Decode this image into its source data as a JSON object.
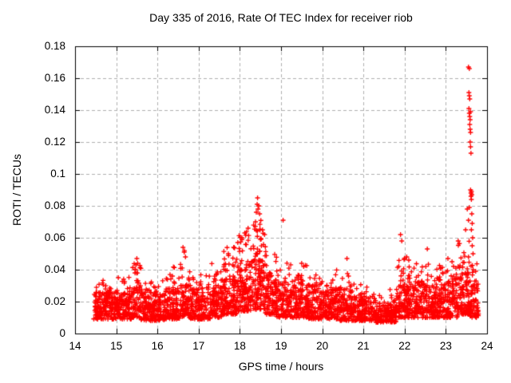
{
  "figure": {
    "title": "Day 335 of 2016, Rate Of TEC Index for receiver riob",
    "xlabel": "GPS time / hours",
    "ylabel": "ROTI / TECUs"
  },
  "colors": {
    "background": "#ffffff",
    "axis": "#000000",
    "grid": "#b0b0b0",
    "marker": "#ff0000"
  },
  "chart_data": {
    "type": "scatter",
    "title": "Day 335 of 2016, Rate Of TEC Index for receiver riob",
    "xlabel": "GPS time / hours",
    "ylabel": "ROTI / TECUs",
    "xlim": [
      14,
      24
    ],
    "ylim": [
      0,
      0.18
    ],
    "xticks": [
      14,
      15,
      16,
      17,
      18,
      19,
      20,
      21,
      22,
      23,
      24
    ],
    "xtick_labels": [
      "14",
      "15",
      "16",
      "17",
      "18",
      "19",
      "20",
      "21",
      "22",
      "23",
      "24"
    ],
    "yticks": [
      0,
      0.02,
      0.04,
      0.06,
      0.08,
      0.1,
      0.12,
      0.14,
      0.16,
      0.18
    ],
    "ytick_labels": [
      "0",
      "0.02",
      "0.04",
      "0.06",
      "0.08",
      "0.1",
      "0.12",
      "0.14",
      "0.16",
      "0.18"
    ],
    "grid": true,
    "legend": null,
    "marker": {
      "shape": "plus",
      "color": "#ff0000",
      "size": 7
    },
    "series_name": "ROTI",
    "time_coverage_hours": [
      14.45,
      23.8
    ],
    "seed": 7,
    "bands_format": [
      "t_start",
      "t_end",
      "base_y_min",
      "base_y_max",
      "n_base_points",
      "tail_y_max",
      "n_tail_points"
    ],
    "bands": [
      [
        14.45,
        15.0,
        0.009,
        0.026,
        170,
        0.034,
        12
      ],
      [
        15.0,
        15.4,
        0.009,
        0.026,
        120,
        0.036,
        10
      ],
      [
        15.4,
        15.6,
        0.01,
        0.03,
        60,
        0.046,
        14
      ],
      [
        15.6,
        16.2,
        0.008,
        0.026,
        180,
        0.034,
        14
      ],
      [
        16.2,
        16.55,
        0.009,
        0.028,
        110,
        0.042,
        14
      ],
      [
        16.55,
        16.8,
        0.01,
        0.03,
        75,
        0.052,
        14
      ],
      [
        16.8,
        17.3,
        0.009,
        0.028,
        150,
        0.037,
        14
      ],
      [
        17.3,
        17.6,
        0.01,
        0.03,
        90,
        0.045,
        12
      ],
      [
        17.6,
        17.95,
        0.012,
        0.034,
        110,
        0.056,
        25
      ],
      [
        17.95,
        18.3,
        0.014,
        0.04,
        110,
        0.066,
        28
      ],
      [
        18.3,
        18.62,
        0.015,
        0.045,
        100,
        0.074,
        40
      ],
      [
        18.62,
        18.85,
        0.012,
        0.035,
        70,
        0.052,
        12
      ],
      [
        18.85,
        19.15,
        0.01,
        0.032,
        95,
        0.048,
        12
      ],
      [
        19.15,
        19.65,
        0.01,
        0.032,
        155,
        0.044,
        16
      ],
      [
        19.65,
        20.35,
        0.009,
        0.03,
        215,
        0.04,
        18
      ],
      [
        20.35,
        20.75,
        0.008,
        0.028,
        120,
        0.038,
        10
      ],
      [
        20.75,
        21.3,
        0.008,
        0.024,
        165,
        0.032,
        10
      ],
      [
        21.3,
        21.8,
        0.007,
        0.02,
        150,
        0.028,
        8
      ],
      [
        21.8,
        22.25,
        0.01,
        0.03,
        135,
        0.05,
        22
      ],
      [
        22.25,
        22.8,
        0.01,
        0.032,
        165,
        0.044,
        18
      ],
      [
        22.8,
        23.3,
        0.01,
        0.034,
        150,
        0.048,
        20
      ],
      [
        23.3,
        23.58,
        0.012,
        0.038,
        90,
        0.058,
        16
      ],
      [
        23.58,
        23.8,
        0.01,
        0.032,
        70,
        0.045,
        10
      ]
    ],
    "outliers_format": [
      "t_hours",
      "roti_tecus"
    ],
    "outliers": [
      [
        15.05,
        0.035
      ],
      [
        15.48,
        0.043
      ],
      [
        15.5,
        0.047
      ],
      [
        15.52,
        0.044
      ],
      [
        16.62,
        0.054
      ],
      [
        16.65,
        0.051
      ],
      [
        16.68,
        0.048
      ],
      [
        17.72,
        0.05
      ],
      [
        17.85,
        0.054
      ],
      [
        17.95,
        0.057
      ],
      [
        18.05,
        0.06
      ],
      [
        18.12,
        0.063
      ],
      [
        18.2,
        0.066
      ],
      [
        18.38,
        0.07
      ],
      [
        18.4,
        0.076
      ],
      [
        18.42,
        0.081
      ],
      [
        18.44,
        0.078
      ],
      [
        18.46,
        0.08
      ],
      [
        18.48,
        0.075
      ],
      [
        18.43,
        0.085
      ],
      [
        18.55,
        0.065
      ],
      [
        18.6,
        0.062
      ],
      [
        19.05,
        0.071
      ],
      [
        19.5,
        0.044
      ],
      [
        19.55,
        0.042
      ],
      [
        20.6,
        0.047
      ],
      [
        21.9,
        0.062
      ],
      [
        21.93,
        0.058
      ],
      [
        22.05,
        0.048
      ],
      [
        22.1,
        0.046
      ],
      [
        22.55,
        0.053
      ],
      [
        23.05,
        0.047
      ],
      [
        23.15,
        0.045
      ],
      [
        23.3,
        0.058
      ],
      [
        23.48,
        0.065
      ],
      [
        23.52,
        0.078
      ],
      [
        23.55,
        0.071
      ],
      [
        23.55,
        0.167
      ],
      [
        23.57,
        0.166
      ],
      [
        23.56,
        0.151
      ],
      [
        23.57,
        0.149
      ],
      [
        23.58,
        0.147
      ],
      [
        23.56,
        0.141
      ],
      [
        23.57,
        0.138
      ],
      [
        23.58,
        0.136
      ],
      [
        23.59,
        0.134
      ],
      [
        23.6,
        0.139
      ],
      [
        23.58,
        0.131
      ],
      [
        23.59,
        0.128
      ],
      [
        23.6,
        0.126
      ],
      [
        23.59,
        0.12
      ],
      [
        23.6,
        0.117
      ],
      [
        23.61,
        0.113
      ],
      [
        23.6,
        0.09
      ],
      [
        23.61,
        0.088
      ],
      [
        23.61,
        0.086
      ],
      [
        23.62,
        0.089
      ],
      [
        23.63,
        0.087
      ],
      [
        23.62,
        0.084
      ],
      [
        23.57,
        0.079
      ],
      [
        23.63,
        0.075
      ],
      [
        23.64,
        0.069
      ],
      [
        23.62,
        0.065
      ],
      [
        23.65,
        0.06
      ],
      [
        23.64,
        0.055
      ],
      [
        23.66,
        0.05
      ],
      [
        23.55,
        0.048
      ]
    ]
  }
}
